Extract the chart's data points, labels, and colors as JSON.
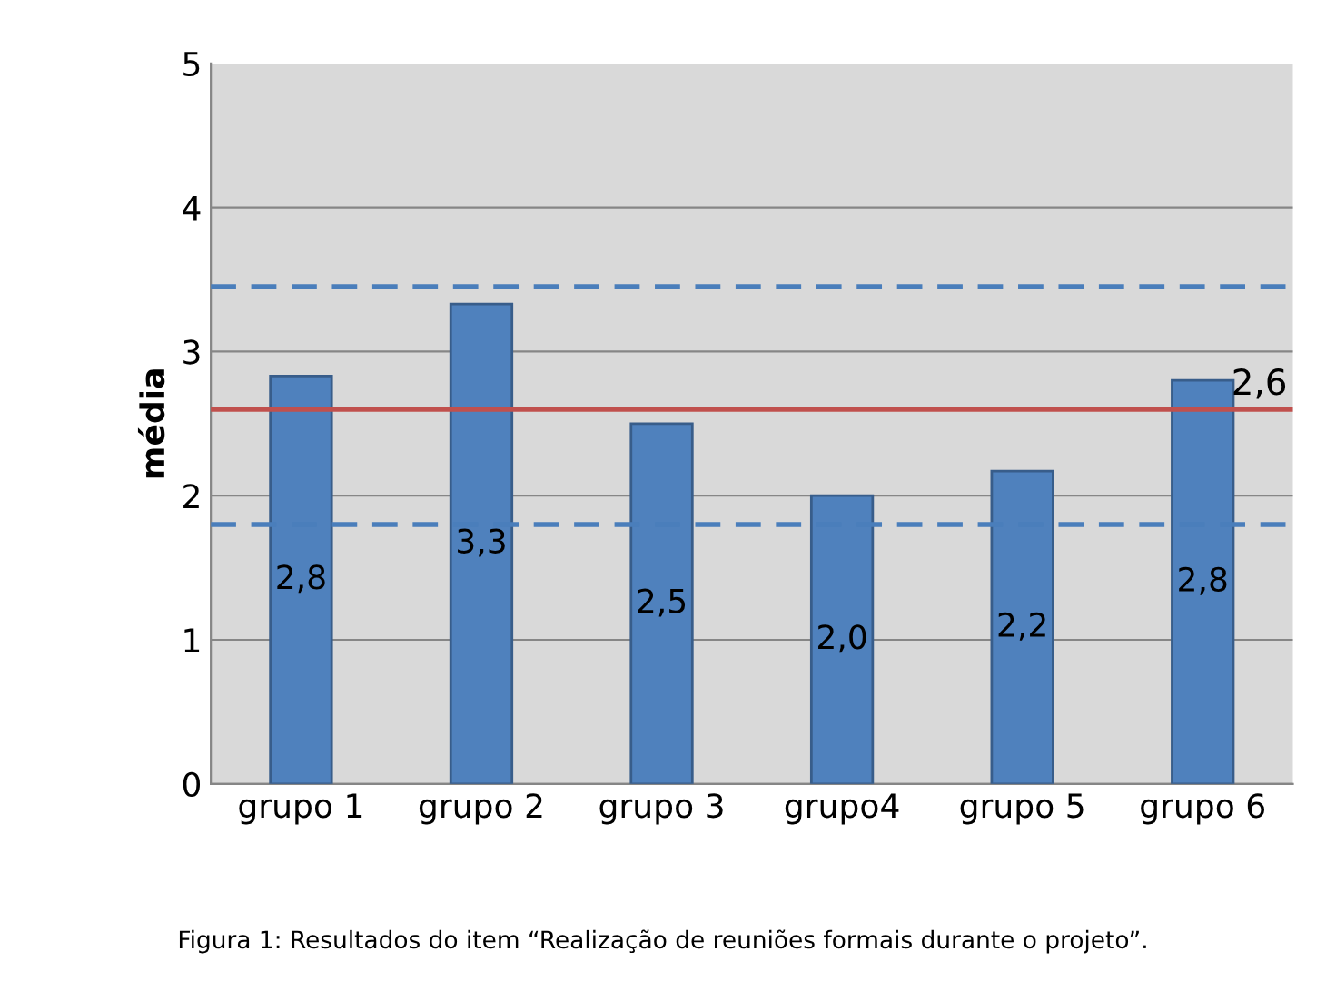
{
  "chart_data": {
    "type": "bar",
    "ylabel": "média",
    "categories": [
      "grupo 1",
      "grupo 2",
      "grupo 3",
      "grupo4",
      "grupo 5",
      "grupo 6"
    ],
    "values": [
      2.83,
      3.33,
      2.5,
      2.0,
      2.17,
      2.8
    ],
    "value_labels": [
      "2,8",
      "3,3",
      "2,5",
      "2,0",
      "2,2",
      "2,8"
    ],
    "color": "#4f81bd",
    "ylim": [
      0,
      5
    ],
    "yticks": [
      0,
      1,
      2,
      3,
      4,
      5
    ],
    "grid": "y",
    "ref_lines": [
      {
        "axis": "y",
        "value": 2.6,
        "label": "2,6",
        "color": "#c0504d",
        "line_style": "solid"
      },
      {
        "axis": "y",
        "value": 3.45,
        "color": "#4a7ebb",
        "line_style": "dashed"
      },
      {
        "axis": "y",
        "value": 1.8,
        "color": "#4a7ebb",
        "line_style": "dashed"
      }
    ],
    "annotations": [
      "Figura 1: Resultados do item “Realização de reuniões formais durante o projeto”."
    ]
  }
}
